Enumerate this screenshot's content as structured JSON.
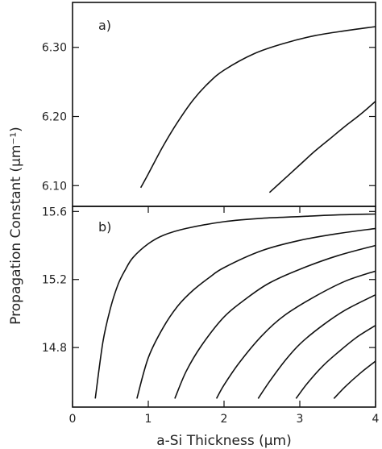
{
  "chart_data": [
    {
      "type": "line",
      "panel_label": "a)",
      "ylabel": "Propagation Constant (μm⁻¹)",
      "xlim": [
        0,
        4
      ],
      "ylim": [
        6.07,
        6.365
      ],
      "y_ticks": [
        6.1,
        6.2,
        6.3
      ],
      "y_tick_labels": [
        "6.10",
        "6.20",
        "6.30"
      ],
      "series": [
        {
          "x": [
            0.9,
            1.0,
            1.2,
            1.4,
            1.6,
            1.8,
            2.0,
            2.4,
            2.8,
            3.2,
            3.6,
            4.0
          ],
          "y": [
            6.097,
            6.117,
            6.158,
            6.194,
            6.225,
            6.249,
            6.267,
            6.291,
            6.306,
            6.317,
            6.324,
            6.33
          ]
        },
        {
          "x": [
            2.6,
            2.8,
            3.0,
            3.2,
            3.4,
            3.6,
            3.8,
            4.0
          ],
          "y": [
            6.09,
            6.11,
            6.13,
            6.15,
            6.168,
            6.186,
            6.203,
            6.222
          ]
        }
      ]
    },
    {
      "type": "line",
      "panel_label": "b)",
      "xlabel": "a-Si Thickness (μm)",
      "xlim": [
        0,
        4
      ],
      "ylim": [
        14.45,
        15.63
      ],
      "x_ticks": [
        0,
        1,
        2,
        3,
        4
      ],
      "x_tick_labels": [
        "0",
        "1",
        "2",
        "3",
        "4"
      ],
      "y_ticks": [
        14.8,
        15.2,
        15.6
      ],
      "y_tick_labels": [
        "14.8",
        "15.2",
        "15.6"
      ],
      "series": [
        {
          "x": [
            0.3,
            0.4,
            0.5,
            0.6,
            0.7,
            0.8,
            1.0,
            1.2,
            1.5,
            2.0,
            2.5,
            3.0,
            3.5,
            4.0
          ],
          "y": [
            14.5,
            14.83,
            15.03,
            15.17,
            15.26,
            15.33,
            15.41,
            15.46,
            15.5,
            15.54,
            15.56,
            15.57,
            15.58,
            15.585
          ]
        },
        {
          "x": [
            0.85,
            1.0,
            1.2,
            1.4,
            1.6,
            1.8,
            2.0,
            2.5,
            3.0,
            3.5,
            4.0
          ],
          "y": [
            14.5,
            14.74,
            14.92,
            15.05,
            15.14,
            15.21,
            15.27,
            15.37,
            15.43,
            15.47,
            15.5
          ]
        },
        {
          "x": [
            1.35,
            1.5,
            1.7,
            2.0,
            2.3,
            2.6,
            3.0,
            3.5,
            4.0
          ],
          "y": [
            14.5,
            14.66,
            14.81,
            14.98,
            15.09,
            15.18,
            15.26,
            15.34,
            15.4
          ]
        },
        {
          "x": [
            1.9,
            2.0,
            2.2,
            2.5,
            2.8,
            3.2,
            3.6,
            4.0
          ],
          "y": [
            14.5,
            14.58,
            14.71,
            14.87,
            14.99,
            15.1,
            15.19,
            15.25
          ]
        },
        {
          "x": [
            2.45,
            2.6,
            2.8,
            3.0,
            3.3,
            3.6,
            4.0
          ],
          "y": [
            14.5,
            14.6,
            14.72,
            14.82,
            14.93,
            15.02,
            15.11
          ]
        },
        {
          "x": [
            2.95,
            3.1,
            3.3,
            3.5,
            3.75,
            4.0
          ],
          "y": [
            14.5,
            14.59,
            14.69,
            14.77,
            14.86,
            14.93
          ]
        },
        {
          "x": [
            3.45,
            3.6,
            3.8,
            4.0
          ],
          "y": [
            14.5,
            14.57,
            14.65,
            14.72
          ]
        }
      ]
    }
  ]
}
